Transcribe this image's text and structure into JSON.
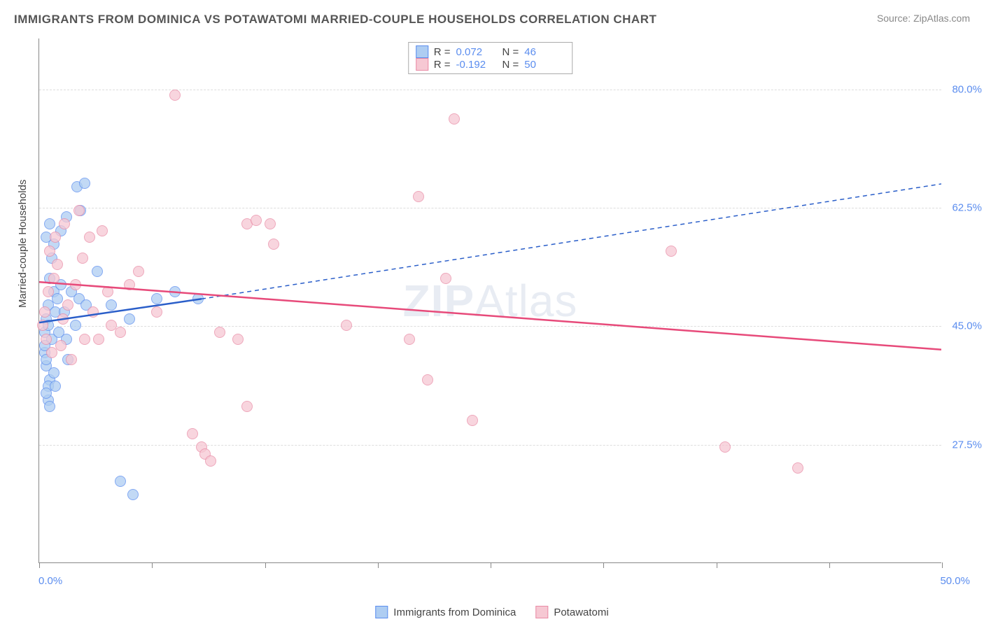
{
  "title": "IMMIGRANTS FROM DOMINICA VS POTAWATOMI MARRIED-COUPLE HOUSEHOLDS CORRELATION CHART",
  "source_prefix": "Source: ",
  "source_name": "ZipAtlas.com",
  "watermark_a": "ZIP",
  "watermark_b": "Atlas",
  "chart": {
    "type": "scatter",
    "ylabel": "Married-couple Households",
    "xlim": [
      0,
      50
    ],
    "ylim": [
      10,
      87.5
    ],
    "x_tick_positions": [
      0,
      6.25,
      12.5,
      18.75,
      25,
      31.25,
      37.5,
      43.75,
      50
    ],
    "x_label_min": "0.0%",
    "x_label_max": "50.0%",
    "y_gridlines": [
      27.5,
      45.0,
      62.5,
      80.0
    ],
    "y_tick_labels": [
      "27.5%",
      "45.0%",
      "62.5%",
      "80.0%"
    ],
    "background_color": "#ffffff",
    "grid_color": "#dddddd",
    "axis_color": "#888888",
    "marker_radius": 8,
    "marker_stroke_width": 1.5
  },
  "series": [
    {
      "name": "Immigrants from Dominica",
      "color_fill": "#aecdf2",
      "color_stroke": "#5b8def",
      "r_label": "R =",
      "r_value": "0.072",
      "n_label": "N =",
      "n_value": "46",
      "trend": {
        "x1": 0,
        "y1": 45.5,
        "x2": 9,
        "y2": 49.0,
        "solid": true,
        "ext_x2": 50,
        "ext_y2": 66.0,
        "width": 2.5,
        "color": "#2a5ec9"
      },
      "points": [
        [
          0.3,
          44
        ],
        [
          0.5,
          48
        ],
        [
          0.4,
          46
        ],
        [
          0.6,
          52
        ],
        [
          0.8,
          50
        ],
        [
          0.5,
          45
        ],
        [
          0.3,
          41
        ],
        [
          0.4,
          39
        ],
        [
          0.7,
          43
        ],
        [
          0.9,
          47
        ],
        [
          1.0,
          49
        ],
        [
          1.2,
          51
        ],
        [
          0.6,
          37
        ],
        [
          0.5,
          36
        ],
        [
          0.8,
          38
        ],
        [
          0.4,
          40
        ],
        [
          0.3,
          42
        ],
        [
          1.1,
          44
        ],
        [
          1.4,
          47
        ],
        [
          1.8,
          50
        ],
        [
          2.2,
          49
        ],
        [
          2.6,
          48
        ],
        [
          2.0,
          45
        ],
        [
          1.5,
          43
        ],
        [
          0.7,
          55
        ],
        [
          0.8,
          57
        ],
        [
          1.2,
          59
        ],
        [
          1.5,
          61
        ],
        [
          2.1,
          65.5
        ],
        [
          2.5,
          66
        ],
        [
          2.3,
          62
        ],
        [
          3.2,
          53
        ],
        [
          0.5,
          34
        ],
        [
          0.6,
          33
        ],
        [
          0.4,
          35
        ],
        [
          0.9,
          36
        ],
        [
          1.6,
          40
        ],
        [
          4.0,
          48
        ],
        [
          5.0,
          46
        ],
        [
          6.5,
          49
        ],
        [
          7.5,
          50
        ],
        [
          8.8,
          49
        ],
        [
          0.6,
          60
        ],
        [
          0.4,
          58
        ],
        [
          4.5,
          22
        ],
        [
          5.2,
          20
        ]
      ]
    },
    {
      "name": "Potawatomi",
      "color_fill": "#f6c8d3",
      "color_stroke": "#e98ba6",
      "r_label": "R =",
      "r_value": "-0.192",
      "n_label": "N =",
      "n_value": "50",
      "trend": {
        "x1": 0,
        "y1": 51.5,
        "x2": 50,
        "y2": 41.5,
        "solid": true,
        "width": 2.5,
        "color": "#e74a7a"
      },
      "points": [
        [
          0.2,
          45
        ],
        [
          0.3,
          47
        ],
        [
          0.5,
          50
        ],
        [
          0.8,
          52
        ],
        [
          1.0,
          54
        ],
        [
          1.3,
          46
        ],
        [
          1.6,
          48
        ],
        [
          2.0,
          51
        ],
        [
          2.4,
          55
        ],
        [
          2.8,
          58
        ],
        [
          3.5,
          59
        ],
        [
          4.0,
          45
        ],
        [
          4.5,
          44
        ],
        [
          5.0,
          51
        ],
        [
          5.5,
          53
        ],
        [
          1.2,
          42
        ],
        [
          1.8,
          40
        ],
        [
          2.5,
          43
        ],
        [
          3.0,
          47
        ],
        [
          3.8,
          50
        ],
        [
          0.6,
          56
        ],
        [
          0.9,
          58
        ],
        [
          1.4,
          60
        ],
        [
          2.2,
          62
        ],
        [
          3.3,
          43
        ],
        [
          6.5,
          47
        ],
        [
          7.5,
          79
        ],
        [
          11.5,
          60
        ],
        [
          12.0,
          60.5
        ],
        [
          12.8,
          60
        ],
        [
          13.0,
          57
        ],
        [
          10.0,
          44
        ],
        [
          11.0,
          43
        ],
        [
          11.5,
          33
        ],
        [
          8.5,
          29
        ],
        [
          9.0,
          27
        ],
        [
          9.2,
          26
        ],
        [
          9.5,
          25
        ],
        [
          17.0,
          45
        ],
        [
          20.5,
          43
        ],
        [
          21.5,
          37
        ],
        [
          21.0,
          64
        ],
        [
          23.0,
          75.5
        ],
        [
          22.5,
          52
        ],
        [
          24.0,
          31
        ],
        [
          35.0,
          56
        ],
        [
          38.0,
          27
        ],
        [
          42.0,
          24
        ],
        [
          0.4,
          43
        ],
        [
          0.7,
          41
        ]
      ]
    }
  ],
  "legend": {
    "s1": "Immigrants from Dominica",
    "s2": "Potawatomi"
  }
}
